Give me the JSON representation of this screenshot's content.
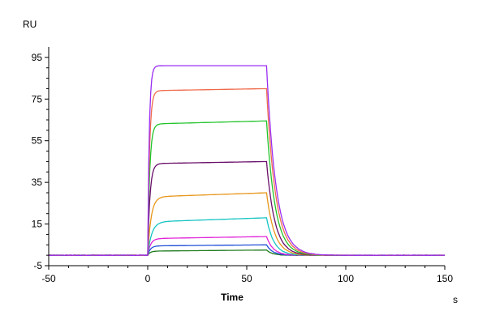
{
  "chart_data": {
    "type": "line",
    "title": "",
    "ylabel": "RU",
    "xlabel": "Time",
    "x_unit": "s",
    "xlim": [
      -50,
      150
    ],
    "ylim": [
      -5,
      100
    ],
    "x_ticks": [
      -50,
      0,
      50,
      100,
      150
    ],
    "x_tick_labels": [
      "-50",
      "0",
      "50",
      "100",
      "150"
    ],
    "y_ticks": [
      -5,
      15,
      35,
      55,
      75,
      95
    ],
    "y_tick_labels": [
      "-5",
      "15",
      "35",
      "55",
      "75",
      "95"
    ],
    "grid": false,
    "legend": "none",
    "assoc_start": 0,
    "dissoc_start": 60,
    "series": [
      {
        "color": "#1e7b1e",
        "plateau": 2,
        "end": 2.5,
        "ka": 0.8,
        "kd": 0.35
      },
      {
        "color": "#1f4fd6",
        "plateau": 4.5,
        "end": 5,
        "ka": 0.75,
        "kd": 0.32
      },
      {
        "color": "#e020d8",
        "plateau": 8,
        "end": 9,
        "ka": 0.7,
        "kd": 0.3
      },
      {
        "color": "#16c4c4",
        "plateau": 16,
        "end": 18,
        "ka": 0.5,
        "kd": 0.27
      },
      {
        "color": "#e8961a",
        "plateau": 28,
        "end": 30,
        "ka": 0.6,
        "kd": 0.25
      },
      {
        "color": "#6a0f6a",
        "plateau": 44,
        "end": 45,
        "ka": 0.9,
        "kd": 0.24
      },
      {
        "color": "#22c42a",
        "plateau": 63,
        "end": 64.5,
        "ka": 1.0,
        "kd": 0.23
      },
      {
        "color": "#f06a4a",
        "plateau": 79,
        "end": 80,
        "ka": 1.1,
        "kd": 0.22
      },
      {
        "color": "#9a2cf2",
        "plateau": 91,
        "end": 91,
        "ka": 1.3,
        "kd": 0.21
      }
    ]
  }
}
